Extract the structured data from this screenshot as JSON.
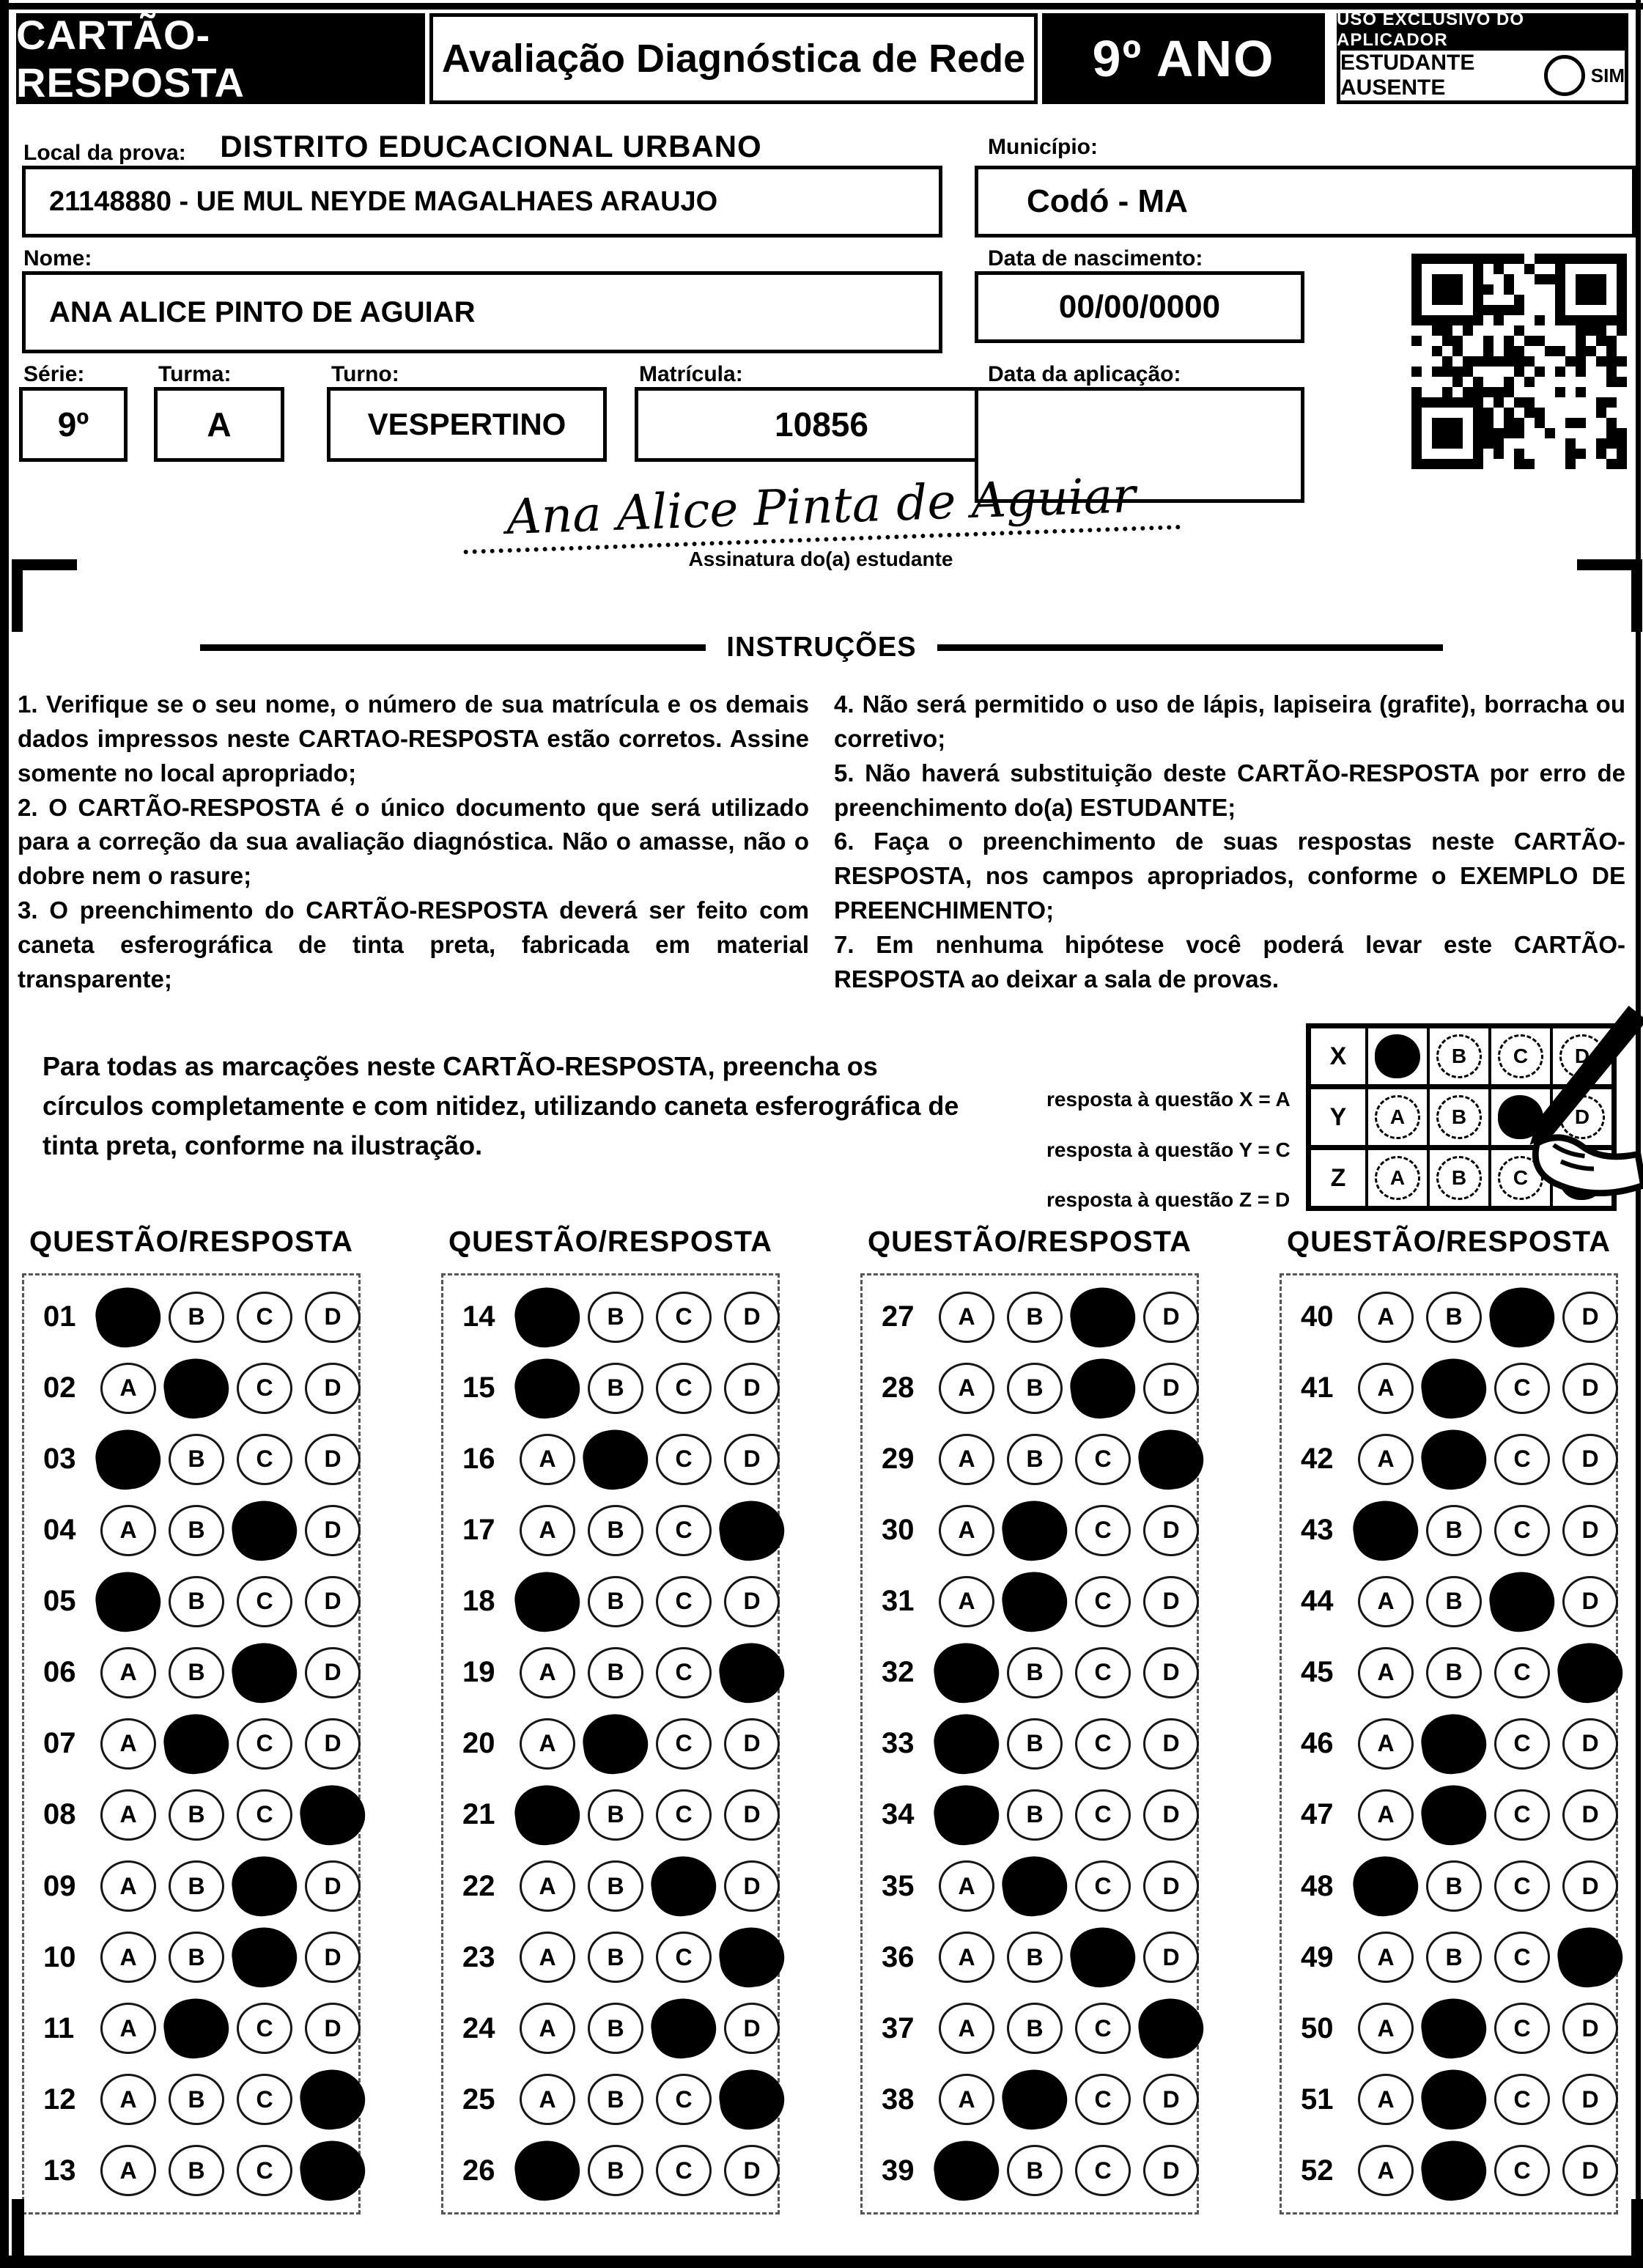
{
  "header": {
    "title": "CARTÃO-RESPOSTA",
    "subtitle": "Avaliação Diagnóstica de Rede",
    "grade": "9º ANO",
    "exclusive_label": "USO EXCLUSIVO DO APLICADOR",
    "absent_label": "ESTUDANTE AUSENTE",
    "absent_option": "SIM"
  },
  "form": {
    "district_title": "DISTRITO EDUCACIONAL URBANO",
    "local_label": "Local da prova:",
    "local_value": "21148880 - UE MUL NEYDE MAGALHAES ARAUJO",
    "municipio_label": "Município:",
    "municipio_value": "Codó - MA",
    "nome_label": "Nome:",
    "nome_value": "ANA ALICE PINTO DE AGUIAR",
    "nascimento_label": "Data de nascimento:",
    "nascimento_value": "00/00/0000",
    "serie_label": "Série:",
    "serie_value": "9º",
    "turma_label": "Turma:",
    "turma_value": "A",
    "turno_label": "Turno:",
    "turno_value": "VESPERTINO",
    "matricula_label": "Matrícula:",
    "matricula_value": "10856",
    "aplicacao_label": "Data da aplicação:",
    "aplicacao_value": ""
  },
  "signature": {
    "name": "Ana Alice Pinta de Aguiar",
    "label": "Assinatura do(a) estudante"
  },
  "instructions": {
    "title": "INSTRUÇÕES",
    "left": [
      "1. Verifique se o seu nome, o número de sua matrícula e os demais dados impressos neste CARTAO-RESPOSTA estão corretos. Assine somente no local apropriado;",
      "2. O CARTÃO-RESPOSTA é o único documento que será utilizado para a correção da sua avaliação diagnóstica. Não o amasse, não o dobre nem o rasure;",
      "3. O preenchimento do CARTÃO-RESPOSTA deverá ser feito com caneta esferográfica de tinta preta, fabricada em material transparente;"
    ],
    "right": [
      "4. Não será permitido o uso de lápis, lapiseira (grafite), borracha ou corretivo;",
      "5. Não haverá substituição deste CARTÃO-RESPOSTA por erro de preenchimento do(a) ESTUDANTE;",
      "6. Faça o preenchimento de suas respostas neste CARTÃO-RESPOSTA, nos campos apropriados, conforme o EXEMPLO DE PREENCHIMENTO;",
      "7. Em nenhuma hipótese você poderá levar este CARTÃO-RESPOSTA ao deixar a sala de provas."
    ]
  },
  "example": {
    "paragraph": "Para todas as marcações neste CARTÃO-RESPOSTA, preencha os círculos completamente e com nitidez, utilizando caneta esferográfica de tinta preta, conforme na ilustração.",
    "legend": [
      "resposta à questão X = A",
      "resposta à questão Y = C",
      "resposta à questão Z = D"
    ],
    "options": [
      "A",
      "B",
      "C",
      "D"
    ],
    "rows": [
      {
        "label": "X",
        "marked": "A"
      },
      {
        "label": "Y",
        "marked": "C"
      },
      {
        "label": "Z",
        "marked": "D"
      }
    ]
  },
  "answers": {
    "column_header": "QUESTÃO/RESPOSTA",
    "options": [
      "A",
      "B",
      "C",
      "D"
    ],
    "columns": [
      [
        {
          "q": "01",
          "marked": "A"
        },
        {
          "q": "02",
          "marked": "B"
        },
        {
          "q": "03",
          "marked": "A"
        },
        {
          "q": "04",
          "marked": "C"
        },
        {
          "q": "05",
          "marked": "A"
        },
        {
          "q": "06",
          "marked": "C"
        },
        {
          "q": "07",
          "marked": "B"
        },
        {
          "q": "08",
          "marked": "D"
        },
        {
          "q": "09",
          "marked": "C"
        },
        {
          "q": "10",
          "marked": "C"
        },
        {
          "q": "11",
          "marked": "B"
        },
        {
          "q": "12",
          "marked": "D"
        },
        {
          "q": "13",
          "marked": "D"
        }
      ],
      [
        {
          "q": "14",
          "marked": "A"
        },
        {
          "q": "15",
          "marked": "A"
        },
        {
          "q": "16",
          "marked": "B"
        },
        {
          "q": "17",
          "marked": "D"
        },
        {
          "q": "18",
          "marked": "A"
        },
        {
          "q": "19",
          "marked": "D"
        },
        {
          "q": "20",
          "marked": "B"
        },
        {
          "q": "21",
          "marked": "A"
        },
        {
          "q": "22",
          "marked": "C"
        },
        {
          "q": "23",
          "marked": "D"
        },
        {
          "q": "24",
          "marked": "C"
        },
        {
          "q": "25",
          "marked": "D"
        },
        {
          "q": "26",
          "marked": "A"
        }
      ],
      [
        {
          "q": "27",
          "marked": "C"
        },
        {
          "q": "28",
          "marked": "C"
        },
        {
          "q": "29",
          "marked": "D"
        },
        {
          "q": "30",
          "marked": "B"
        },
        {
          "q": "31",
          "marked": "B"
        },
        {
          "q": "32",
          "marked": "A"
        },
        {
          "q": "33",
          "marked": "A"
        },
        {
          "q": "34",
          "marked": "A"
        },
        {
          "q": "35",
          "marked": "B"
        },
        {
          "q": "36",
          "marked": "C"
        },
        {
          "q": "37",
          "marked": "D"
        },
        {
          "q": "38",
          "marked": "B"
        },
        {
          "q": "39",
          "marked": "A"
        }
      ],
      [
        {
          "q": "40",
          "marked": "C"
        },
        {
          "q": "41",
          "marked": "B"
        },
        {
          "q": "42",
          "marked": "B"
        },
        {
          "q": "43",
          "marked": "A"
        },
        {
          "q": "44",
          "marked": "C"
        },
        {
          "q": "45",
          "marked": "D"
        },
        {
          "q": "46",
          "marked": "B"
        },
        {
          "q": "47",
          "marked": "B"
        },
        {
          "q": "48",
          "marked": "A"
        },
        {
          "q": "49",
          "marked": "D"
        },
        {
          "q": "50",
          "marked": "B"
        },
        {
          "q": "51",
          "marked": "B"
        },
        {
          "q": "52",
          "marked": "B"
        }
      ]
    ]
  },
  "colors": {
    "ink": "#000000",
    "paper": "#ffffff"
  }
}
